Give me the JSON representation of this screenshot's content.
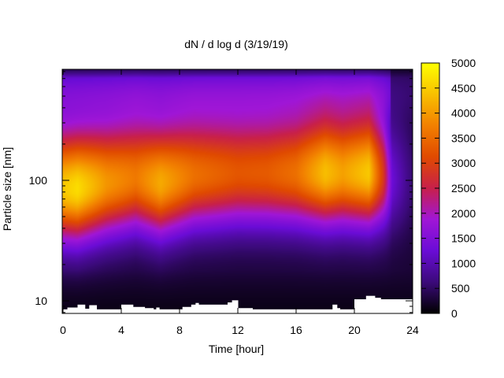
{
  "chart_data": {
    "type": "heatmap",
    "title": "dN / d log d (3/19/19)",
    "xlabel": "Time [hour]",
    "ylabel": "Particle size [nm]",
    "xlim": [
      0,
      24
    ],
    "ylim": [
      7.8,
      880
    ],
    "y_scale": "log",
    "x_ticks": [
      0,
      4,
      8,
      12,
      16,
      20,
      24
    ],
    "y_ticks": [
      10,
      100
    ],
    "colorbar": {
      "min": 0,
      "max": 5000,
      "ticks": [
        0,
        500,
        1000,
        1500,
        2000,
        2500,
        3000,
        3500,
        4000,
        4500,
        5000
      ],
      "colors": [
        "#000000",
        "#3b0a7a",
        "#6a0cd6",
        "#a016d6",
        "#c8204a",
        "#e04a00",
        "#f28000",
        "#f8c000",
        "#ffff00"
      ]
    },
    "mode_peak": [
      {
        "hour": 0,
        "size_nm": 85,
        "value": 4200
      },
      {
        "hour": 1,
        "size_nm": 85,
        "value": 4400
      },
      {
        "hour": 3,
        "size_nm": 95,
        "value": 3700
      },
      {
        "hour": 5,
        "size_nm": 105,
        "value": 3400
      },
      {
        "hour": 6.7,
        "size_nm": 95,
        "value": 3900
      },
      {
        "hour": 9,
        "size_nm": 110,
        "value": 3300
      },
      {
        "hour": 12,
        "size_nm": 115,
        "value": 3000
      },
      {
        "hour": 14,
        "size_nm": 115,
        "value": 3050
      },
      {
        "hour": 16,
        "size_nm": 115,
        "value": 3300
      },
      {
        "hour": 18,
        "size_nm": 115,
        "value": 4100
      },
      {
        "hour": 19.2,
        "size_nm": 115,
        "value": 3800
      },
      {
        "hour": 21,
        "size_nm": 115,
        "value": 4200
      },
      {
        "hour": 22,
        "size_nm": 110,
        "value": 2600
      },
      {
        "hour": 22.6,
        "size_nm": 100,
        "value": 1000
      },
      {
        "hour": 24,
        "size_nm": 100,
        "value": 300
      }
    ],
    "lower_cutoff_nm": [
      {
        "hour": 0,
        "size_nm": 8.5
      },
      {
        "hour": 0.3,
        "size_nm": 8.8
      },
      {
        "hour": 1.0,
        "size_nm": 9.3
      },
      {
        "hour": 1.5,
        "size_nm": 8.6
      },
      {
        "hour": 1.8,
        "size_nm": 9.2
      },
      {
        "hour": 2.3,
        "size_nm": 8.5
      },
      {
        "hour": 4.0,
        "size_nm": 9.3
      },
      {
        "hour": 4.8,
        "size_nm": 8.9
      },
      {
        "hour": 5.6,
        "size_nm": 8.7
      },
      {
        "hour": 6.2,
        "size_nm": 8.5
      },
      {
        "hour": 6.4,
        "size_nm": 8.8
      },
      {
        "hour": 6.6,
        "size_nm": 8.5
      },
      {
        "hour": 8.2,
        "size_nm": 8.9
      },
      {
        "hour": 8.8,
        "size_nm": 9.3
      },
      {
        "hour": 9.1,
        "size_nm": 9.6
      },
      {
        "hour": 9.3,
        "size_nm": 9.3
      },
      {
        "hour": 11.3,
        "size_nm": 9.7
      },
      {
        "hour": 11.6,
        "size_nm": 10.1
      },
      {
        "hour": 12.0,
        "size_nm": 8.7
      },
      {
        "hour": 13.0,
        "size_nm": 8.5
      },
      {
        "hour": 18.5,
        "size_nm": 9.3
      },
      {
        "hour": 18.8,
        "size_nm": 8.7
      },
      {
        "hour": 19.0,
        "size_nm": 8.5
      },
      {
        "hour": 20.0,
        "size_nm": 10.3
      },
      {
        "hour": 20.8,
        "size_nm": 11.0
      },
      {
        "hour": 21.4,
        "size_nm": 10.6
      },
      {
        "hour": 21.8,
        "size_nm": 10.3
      },
      {
        "hour": 24.0,
        "size_nm": 10.3
      }
    ]
  }
}
